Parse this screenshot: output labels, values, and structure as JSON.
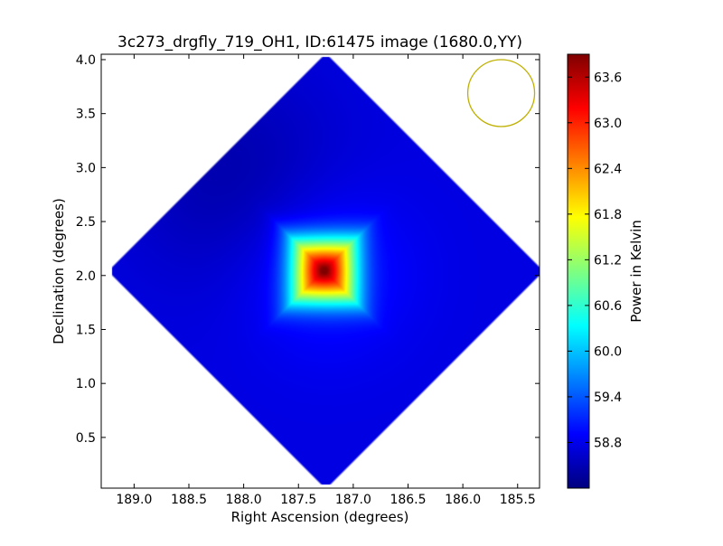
{
  "chart_data": {
    "type": "heatmap",
    "title": "3c273_drgfly_719_OH1, ID:61475 image (1680.0,YY)",
    "xlabel": "Right Ascension (degrees)",
    "ylabel": "Declination (degrees)",
    "xlim": [
      189.3,
      185.3
    ],
    "ylim": [
      0.03,
      4.05
    ],
    "x_ticks": [
      189.0,
      188.5,
      188.0,
      187.5,
      187.0,
      186.5,
      186.0,
      185.5
    ],
    "x_tick_labels": [
      "189.0",
      "188.5",
      "188.0",
      "187.5",
      "187.0",
      "186.5",
      "186.0",
      "185.5"
    ],
    "y_ticks": [
      0.5,
      1.0,
      1.5,
      2.0,
      2.5,
      3.0,
      3.5,
      4.0
    ],
    "y_tick_labels": [
      "0.5",
      "1.0",
      "1.5",
      "2.0",
      "2.5",
      "3.0",
      "3.5",
      "4.0"
    ],
    "colormap": "jet",
    "colorbar": {
      "label": "Power in Kelvin",
      "range": [
        58.2,
        63.9
      ],
      "ticks": [
        58.8,
        59.4,
        60.0,
        60.6,
        61.2,
        61.8,
        62.4,
        63.0,
        63.6
      ],
      "tick_labels": [
        "58.8",
        "59.4",
        "60.0",
        "60.6",
        "61.2",
        "61.8",
        "62.4",
        "63.0",
        "63.6"
      ]
    },
    "map": {
      "center_ra": 187.25,
      "center_dec": 2.04,
      "half_extent_deg": 2.0,
      "peak_ra": 187.27,
      "peak_dec": 2.05,
      "peak_value": 63.9,
      "background_value": 58.75,
      "colder_region": {
        "ra": 188.1,
        "dec": 2.9,
        "value": 58.45
      }
    },
    "beam": {
      "ra": 185.65,
      "dec": 3.69,
      "diameter_deg": 0.61,
      "color": "#bfb000"
    },
    "grid": false
  }
}
